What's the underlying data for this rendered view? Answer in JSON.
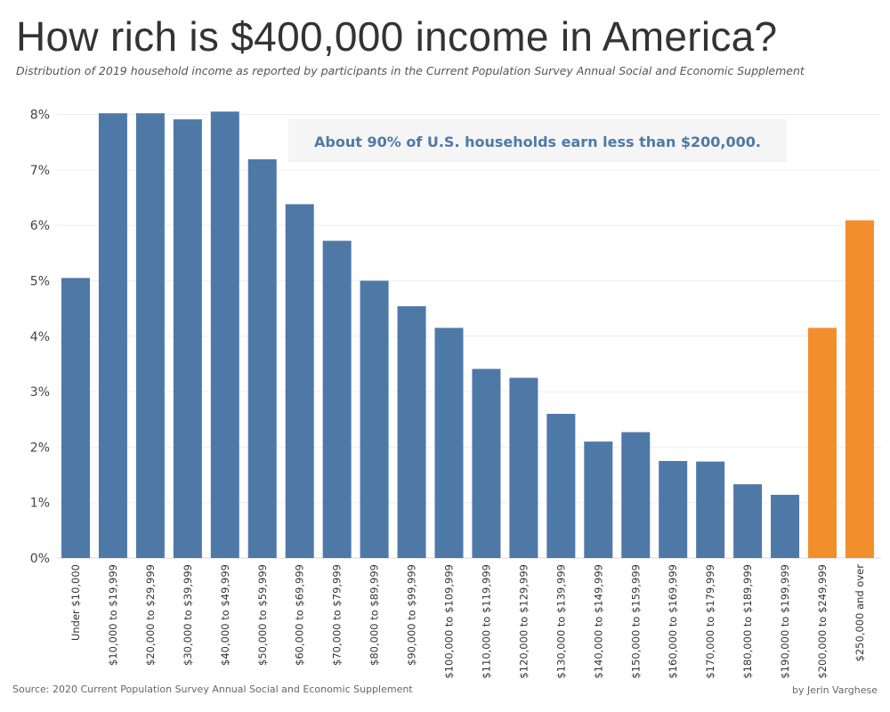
{
  "header": {
    "title": "How rich is $400,000 income in America?",
    "subtitle": "Distribution of 2019 household income as reported by participants in the Current Population Survey Annual Social and Economic Supplement"
  },
  "footer": {
    "source": "Source: 2020 Current Population Survey Annual Social and Economic Supplement",
    "credit": "by Jerin Varghese"
  },
  "chart_data": {
    "type": "bar",
    "title": "How rich is $400,000 income in America?",
    "xlabel": "",
    "ylabel": "",
    "ylim": [
      0,
      8.2
    ],
    "yticks": [
      0,
      1,
      2,
      3,
      4,
      5,
      6,
      7,
      8
    ],
    "ytick_labels": [
      "0%",
      "1%",
      "2%",
      "3%",
      "4%",
      "5%",
      "6%",
      "7%",
      "8%"
    ],
    "grid": true,
    "annotation": "About 90% of U.S. households earn less than $200,000.",
    "colors": {
      "base": "#4e79a7",
      "highlight": "#f28e2b"
    },
    "categories": [
      "Under $10,000",
      "$10,000 to $19,999",
      "$20,000 to $29,999",
      "$30,000 to $39,999",
      "$40,000 to $49,999",
      "$50,000 to $59,999",
      "$60,000 to $69,999",
      "$70,000 to $79,999",
      "$80,000 to $89,999",
      "$90,000 to $99,999",
      "$100,000 to $109,999",
      "$110,000 to $119,999",
      "$120,000 to $129,999",
      "$130,000 to $139,999",
      "$140,000 to $149,999",
      "$150,000 to $159,999",
      "$160,000 to $169,999",
      "$170,000 to $179,999",
      "$180,000 to $189,999",
      "$190,000 to $199,999",
      "$200,000 to $249,999",
      "$250,000 and over"
    ],
    "values": [
      5.05,
      8.02,
      8.02,
      7.91,
      8.05,
      7.19,
      6.38,
      5.72,
      5.0,
      4.54,
      4.15,
      3.41,
      3.25,
      2.6,
      2.1,
      2.27,
      1.75,
      1.74,
      1.33,
      1.14,
      4.15,
      6.09
    ],
    "highlighted": [
      false,
      false,
      false,
      false,
      false,
      false,
      false,
      false,
      false,
      false,
      false,
      false,
      false,
      false,
      false,
      false,
      false,
      false,
      false,
      false,
      true,
      true
    ]
  }
}
